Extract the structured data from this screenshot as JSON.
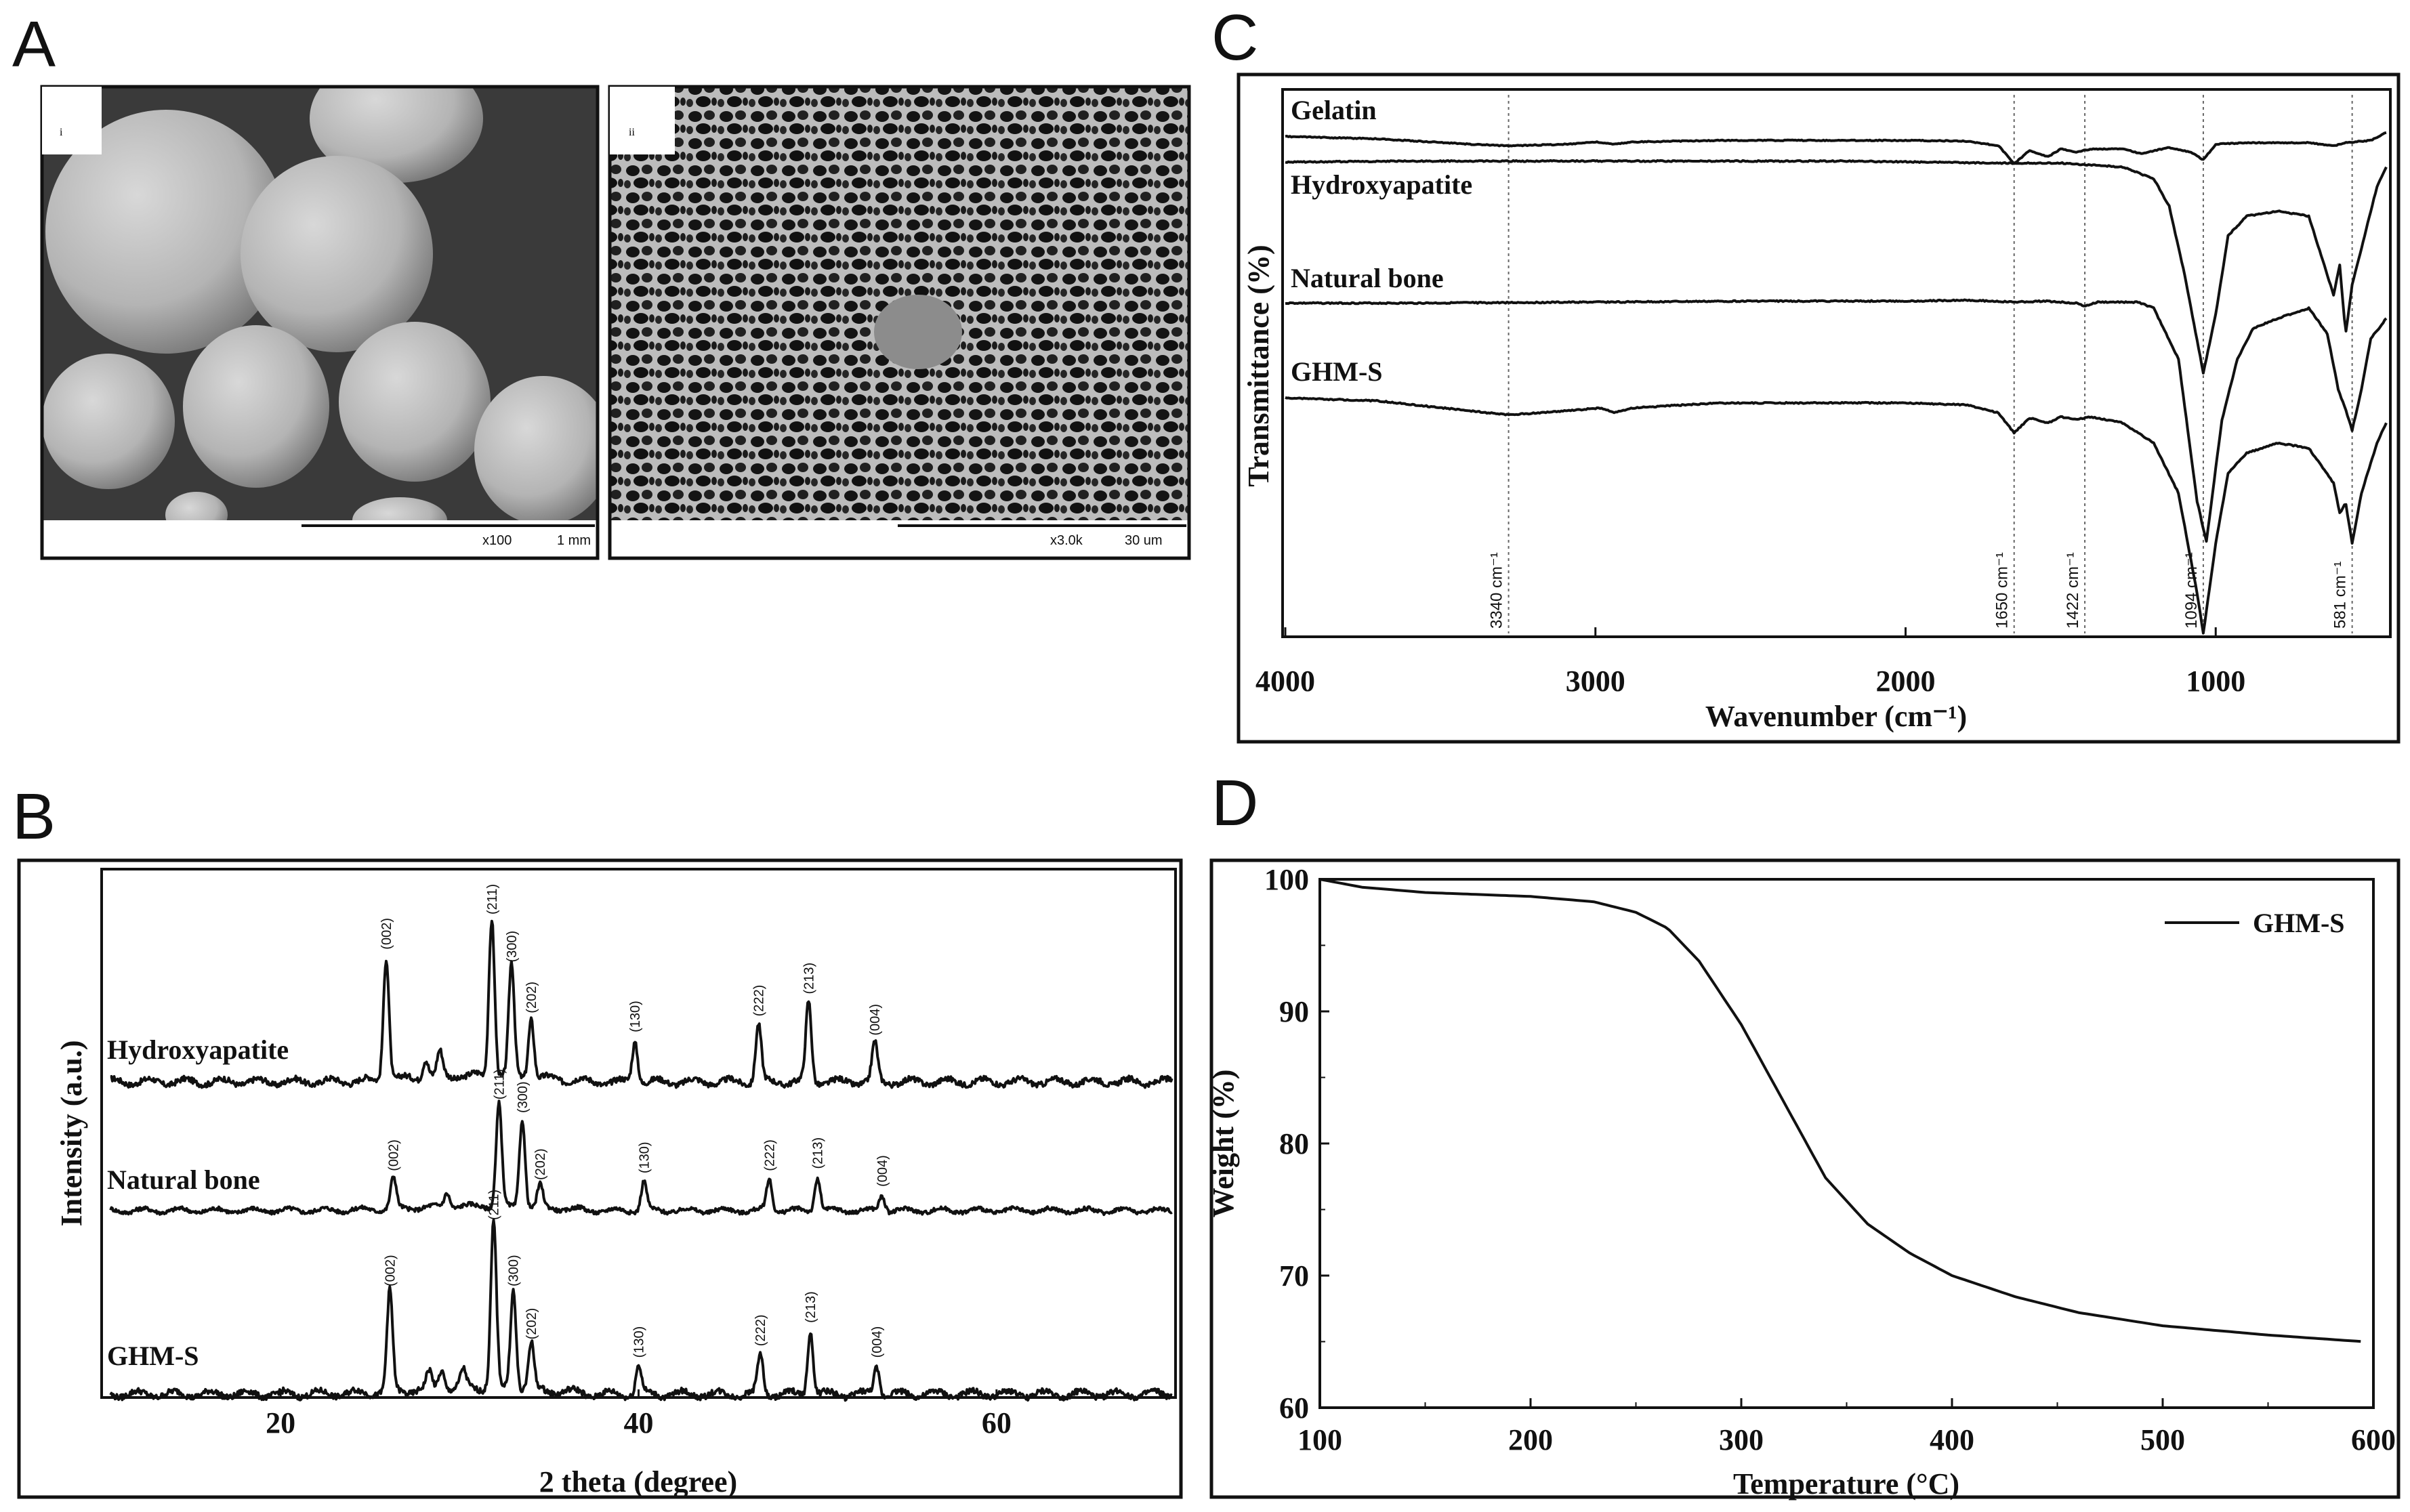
{
  "panels": {
    "a": {
      "label": "A",
      "images": [
        {
          "label": "i",
          "mag": "x100",
          "scale": "1 mm"
        },
        {
          "label": "ii",
          "mag": "x3.0k",
          "scale": "30 um"
        }
      ]
    },
    "b": {
      "label": "B"
    },
    "c": {
      "label": "C"
    },
    "d": {
      "label": "D"
    }
  },
  "chart_data": [
    {
      "id": "B",
      "type": "line",
      "xlabel": "2 theta (degree)",
      "ylabel": "Intensity (a.u.)",
      "xlim": [
        10,
        70
      ],
      "x_ticks": [
        20,
        40,
        60
      ],
      "series": [
        {
          "name": "Hydroxyapatite",
          "peaks": [
            {
              "x": 25.9,
              "h": 0.78,
              "label": "(002)"
            },
            {
              "x": 28.1,
              "h": 0.12,
              "label": ""
            },
            {
              "x": 28.9,
              "h": 0.15,
              "label": ""
            },
            {
              "x": 31.8,
              "h": 1.0,
              "label": "(211)"
            },
            {
              "x": 32.9,
              "h": 0.7,
              "label": "(300)"
            },
            {
              "x": 34.0,
              "h": 0.38,
              "label": "(202)"
            },
            {
              "x": 39.8,
              "h": 0.26,
              "label": "(130)"
            },
            {
              "x": 46.7,
              "h": 0.36,
              "label": "(222)"
            },
            {
              "x": 49.5,
              "h": 0.5,
              "label": "(213)"
            },
            {
              "x": 53.2,
              "h": 0.24,
              "label": "(004)"
            }
          ]
        },
        {
          "name": "Natural bone",
          "peaks": [
            {
              "x": 26.3,
              "h": 0.28,
              "label": "(002)"
            },
            {
              "x": 29.3,
              "h": 0.13,
              "label": ""
            },
            {
              "x": 32.2,
              "h": 0.92,
              "label": "(211)"
            },
            {
              "x": 33.5,
              "h": 0.8,
              "label": "(300)"
            },
            {
              "x": 34.5,
              "h": 0.2,
              "label": "(202)"
            },
            {
              "x": 40.3,
              "h": 0.26,
              "label": "(130)"
            },
            {
              "x": 47.3,
              "h": 0.28,
              "label": "(222)"
            },
            {
              "x": 50.0,
              "h": 0.3,
              "label": "(213)"
            },
            {
              "x": 53.6,
              "h": 0.14,
              "label": "(004)"
            }
          ]
        },
        {
          "name": "GHM-S",
          "peaks": [
            {
              "x": 26.1,
              "h": 0.6,
              "label": "(002)"
            },
            {
              "x": 28.3,
              "h": 0.1,
              "label": ""
            },
            {
              "x": 29.0,
              "h": 0.12,
              "label": ""
            },
            {
              "x": 30.2,
              "h": 0.1,
              "label": ""
            },
            {
              "x": 31.9,
              "h": 1.0,
              "label": "(211)"
            },
            {
              "x": 33.0,
              "h": 0.6,
              "label": "(300)"
            },
            {
              "x": 34.0,
              "h": 0.28,
              "label": "(202)"
            },
            {
              "x": 40.0,
              "h": 0.17,
              "label": "(130)"
            },
            {
              "x": 46.8,
              "h": 0.24,
              "label": "(222)"
            },
            {
              "x": 49.6,
              "h": 0.38,
              "label": "(213)"
            },
            {
              "x": 53.3,
              "h": 0.17,
              "label": "(004)"
            }
          ]
        }
      ]
    },
    {
      "id": "C",
      "type": "line",
      "xlabel": "Wavenumber (cm⁻¹)",
      "ylabel": "Transmittance (%)",
      "xlim": [
        4000,
        450
      ],
      "x_ticks": [
        4000,
        3000,
        2000,
        1000
      ],
      "reference_lines": [
        3280,
        1650,
        1422,
        1040,
        560
      ],
      "annotations": [
        "3340 cm⁻¹",
        "1650 cm⁻¹",
        "1422 cm⁻¹",
        "1094 cm⁻¹",
        "581 cm⁻¹"
      ],
      "series": [
        {
          "name": "Gelatin",
          "points": [
            [
              4000,
              0.1
            ],
            [
              3700,
              0.13
            ],
            [
              3400,
              0.2
            ],
            [
              3280,
              0.22
            ],
            [
              3100,
              0.2
            ],
            [
              3000,
              0.17
            ],
            [
              2940,
              0.2
            ],
            [
              2880,
              0.17
            ],
            [
              2600,
              0.15
            ],
            [
              2000,
              0.15
            ],
            [
              1800,
              0.16
            ],
            [
              1700,
              0.22
            ],
            [
              1650,
              0.45
            ],
            [
              1600,
              0.28
            ],
            [
              1540,
              0.36
            ],
            [
              1500,
              0.26
            ],
            [
              1450,
              0.3
            ],
            [
              1400,
              0.26
            ],
            [
              1300,
              0.26
            ],
            [
              1240,
              0.32
            ],
            [
              1150,
              0.24
            ],
            [
              1080,
              0.3
            ],
            [
              1040,
              0.4
            ],
            [
              1000,
              0.2
            ],
            [
              900,
              0.18
            ],
            [
              700,
              0.18
            ],
            [
              620,
              0.22
            ],
            [
              580,
              0.18
            ],
            [
              500,
              0.15
            ],
            [
              450,
              0.05
            ]
          ]
        },
        {
          "name": "Hydroxyapatite",
          "points": [
            [
              4000,
              0.05
            ],
            [
              3600,
              0.04
            ],
            [
              3000,
              0.04
            ],
            [
              2200,
              0.04
            ],
            [
              1700,
              0.06
            ],
            [
              1500,
              0.06
            ],
            [
              1300,
              0.1
            ],
            [
              1200,
              0.22
            ],
            [
              1150,
              0.5
            ],
            [
              1100,
              1.2
            ],
            [
              1040,
              2.2
            ],
            [
              1000,
              1.6
            ],
            [
              960,
              0.8
            ],
            [
              900,
              0.6
            ],
            [
              800,
              0.55
            ],
            [
              700,
              0.6
            ],
            [
              620,
              1.4
            ],
            [
              600,
              1.1
            ],
            [
              581,
              1.8
            ],
            [
              560,
              1.3
            ],
            [
              520,
              0.8
            ],
            [
              480,
              0.3
            ],
            [
              450,
              0.1
            ]
          ]
        },
        {
          "name": "Natural bone",
          "points": [
            [
              4000,
              0.05
            ],
            [
              3600,
              0.05
            ],
            [
              3000,
              0.04
            ],
            [
              2500,
              0.03
            ],
            [
              2000,
              0.03
            ],
            [
              1800,
              0.02
            ],
            [
              1650,
              0.04
            ],
            [
              1550,
              0.03
            ],
            [
              1450,
              0.05
            ],
            [
              1422,
              0.08
            ],
            [
              1380,
              0.04
            ],
            [
              1250,
              0.04
            ],
            [
              1200,
              0.1
            ],
            [
              1120,
              0.6
            ],
            [
              1060,
              2.0
            ],
            [
              1030,
              2.4
            ],
            [
              980,
              1.2
            ],
            [
              930,
              0.6
            ],
            [
              880,
              0.3
            ],
            [
              800,
              0.2
            ],
            [
              700,
              0.1
            ],
            [
              640,
              0.35
            ],
            [
              605,
              0.9
            ],
            [
              581,
              1.1
            ],
            [
              560,
              1.3
            ],
            [
              530,
              0.9
            ],
            [
              500,
              0.4
            ],
            [
              450,
              0.2
            ]
          ]
        },
        {
          "name": "GHM-S",
          "points": [
            [
              4000,
              0.05
            ],
            [
              3700,
              0.08
            ],
            [
              3400,
              0.18
            ],
            [
              3280,
              0.22
            ],
            [
              3100,
              0.18
            ],
            [
              2980,
              0.15
            ],
            [
              2940,
              0.2
            ],
            [
              2880,
              0.15
            ],
            [
              2600,
              0.1
            ],
            [
              2000,
              0.1
            ],
            [
              1800,
              0.12
            ],
            [
              1700,
              0.2
            ],
            [
              1650,
              0.4
            ],
            [
              1600,
              0.25
            ],
            [
              1540,
              0.3
            ],
            [
              1500,
              0.24
            ],
            [
              1450,
              0.26
            ],
            [
              1400,
              0.24
            ],
            [
              1300,
              0.3
            ],
            [
              1200,
              0.5
            ],
            [
              1120,
              1.0
            ],
            [
              1060,
              2.0
            ],
            [
              1040,
              2.4
            ],
            [
              1000,
              1.5
            ],
            [
              960,
              0.8
            ],
            [
              900,
              0.6
            ],
            [
              800,
              0.5
            ],
            [
              700,
              0.55
            ],
            [
              620,
              0.9
            ],
            [
              600,
              1.2
            ],
            [
              581,
              1.1
            ],
            [
              560,
              1.5
            ],
            [
              530,
              1.0
            ],
            [
              480,
              0.5
            ],
            [
              450,
              0.3
            ]
          ]
        }
      ]
    },
    {
      "id": "D",
      "type": "line",
      "xlabel": "Temperature (°C)",
      "ylabel": "Weight (%)",
      "xlim": [
        100,
        600
      ],
      "ylim": [
        60,
        100
      ],
      "x_ticks": [
        100,
        200,
        300,
        400,
        500,
        600
      ],
      "y_ticks": [
        60,
        70,
        80,
        90,
        100
      ],
      "legend": "top-right",
      "series": [
        {
          "name": "GHM-S",
          "points": [
            [
              100,
              100
            ],
            [
              120,
              99.4
            ],
            [
              150,
              99.0
            ],
            [
              200,
              98.7
            ],
            [
              230,
              98.3
            ],
            [
              250,
              97.5
            ],
            [
              265,
              96.3
            ],
            [
              280,
              93.8
            ],
            [
              300,
              89.0
            ],
            [
              320,
              83.2
            ],
            [
              340,
              77.4
            ],
            [
              360,
              73.9
            ],
            [
              380,
              71.7
            ],
            [
              400,
              70.0
            ],
            [
              430,
              68.4
            ],
            [
              460,
              67.2
            ],
            [
              500,
              66.2
            ],
            [
              550,
              65.5
            ],
            [
              595,
              65.0
            ]
          ]
        }
      ]
    }
  ]
}
